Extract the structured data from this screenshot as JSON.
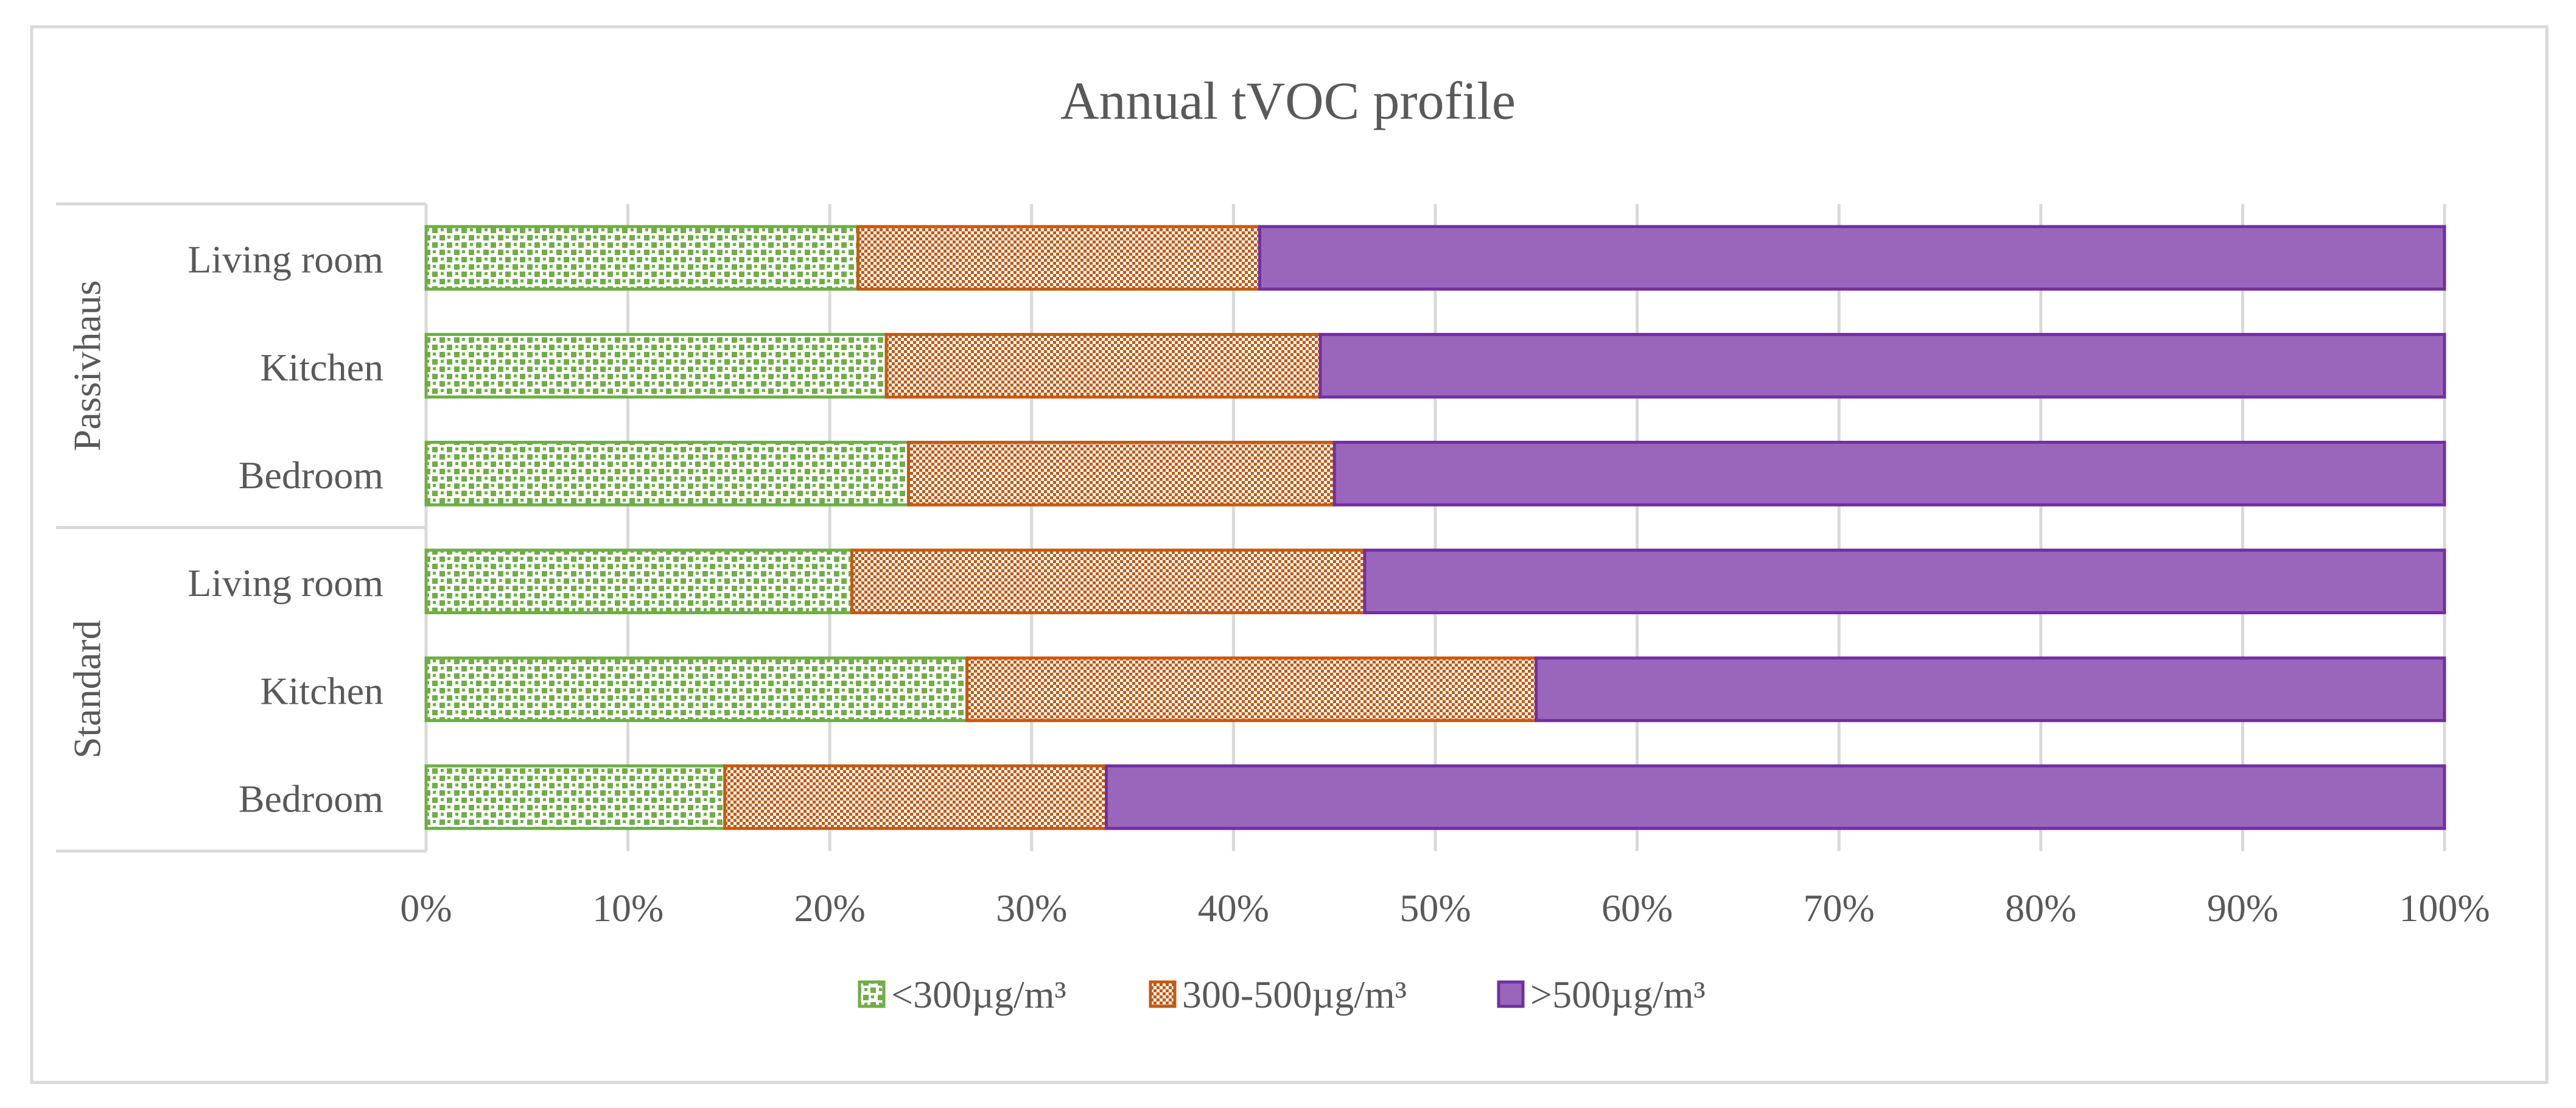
{
  "chart_data": {
    "type": "bar",
    "orientation": "horizontal",
    "stacked": "percent",
    "title": "Annual tVOC profile",
    "groups": [
      {
        "name": "Passivhaus",
        "categories": [
          "Living room",
          "Kitchen",
          "Bedroom"
        ]
      },
      {
        "name": "Standard",
        "categories": [
          "Living room",
          "Kitchen",
          "Bedroom"
        ]
      }
    ],
    "series": [
      {
        "name": "<300µg/m³",
        "color": "#70AD47",
        "pattern": "dotted-grid",
        "values": [
          21.4,
          22.8,
          23.9,
          21.1,
          26.8,
          14.8
        ]
      },
      {
        "name": "300-500µg/m³",
        "color": "#C55A11",
        "pattern": "checker",
        "values": [
          19.9,
          21.5,
          21.1,
          25.4,
          28.2,
          18.9
        ]
      },
      {
        "name": ">500µg/m³",
        "color": "#7030A0",
        "fill": "#9966BB",
        "pattern": "solid",
        "values": [
          58.7,
          55.7,
          55.0,
          53.5,
          45.0,
          66.3
        ]
      }
    ],
    "xlim": [
      0,
      100
    ],
    "x_ticks": [
      "0%",
      "10%",
      "20%",
      "30%",
      "40%",
      "50%",
      "60%",
      "70%",
      "80%",
      "90%",
      "100%"
    ],
    "grid": true,
    "legend": "bottom"
  }
}
